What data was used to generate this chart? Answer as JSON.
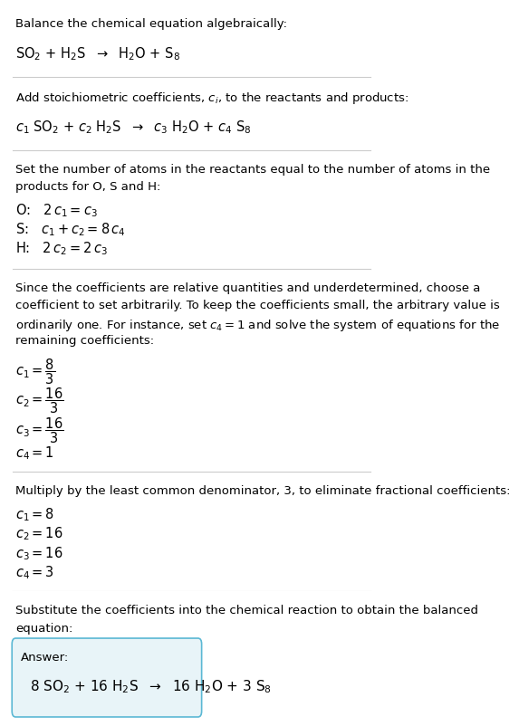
{
  "bg_color": "#ffffff",
  "text_color": "#000000",
  "answer_box_color": "#e8f4f8",
  "answer_box_border": "#5bb8d4",
  "sections": [
    {
      "type": "text_and_math",
      "header": "Balance the chemical equation algebraically:",
      "math_line": "SO$_2$ + H$_2$S  →  H$_2$O + S$_8$"
    },
    {
      "type": "text_and_math",
      "header": "Add stoichiometric coefficients, $c_i$, to the reactants and products:",
      "math_line": "$c_1$ SO$_2$ + $c_2$ H$_2$S  →  $c_3$ H$_2$O + $c_4$ S$_8$"
    },
    {
      "type": "equations",
      "header": "Set the number of atoms in the reactants equal to the number of atoms in the\nproducts for O, S and H:",
      "lines": [
        "O:   $2\\,c_1 = c_3$",
        "S:   $c_1 + c_2 = 8\\,c_4$",
        "H:   $2\\,c_2 = 2\\,c_3$"
      ]
    },
    {
      "type": "text_and_coeff",
      "header": "Since the coefficients are relative quantities and underdetermined, choose a\ncoefficient to set arbitrarily. To keep the coefficients small, the arbitrary value is\nordinarily one. For instance, set $c_4 = 1$ and solve the system of equations for the\nremaining coefficients:",
      "lines": [
        "$c_1 = \\dfrac{8}{3}$",
        "$c_2 = \\dfrac{16}{3}$",
        "$c_3 = \\dfrac{16}{3}$",
        "$c_4 = 1$"
      ]
    },
    {
      "type": "text_and_coeff",
      "header": "Multiply by the least common denominator, 3, to eliminate fractional coefficients:",
      "lines": [
        "$c_1 = 8$",
        "$c_2 = 16$",
        "$c_3 = 16$",
        "$c_4 = 3$"
      ]
    },
    {
      "type": "answer",
      "header": "Substitute the coefficients into the chemical reaction to obtain the balanced\nequation:",
      "answer_label": "Answer:",
      "answer_math": "8 SO$_2$ + 16 H$_2$S  →  16 H$_2$O + 3 S$_8$"
    }
  ]
}
